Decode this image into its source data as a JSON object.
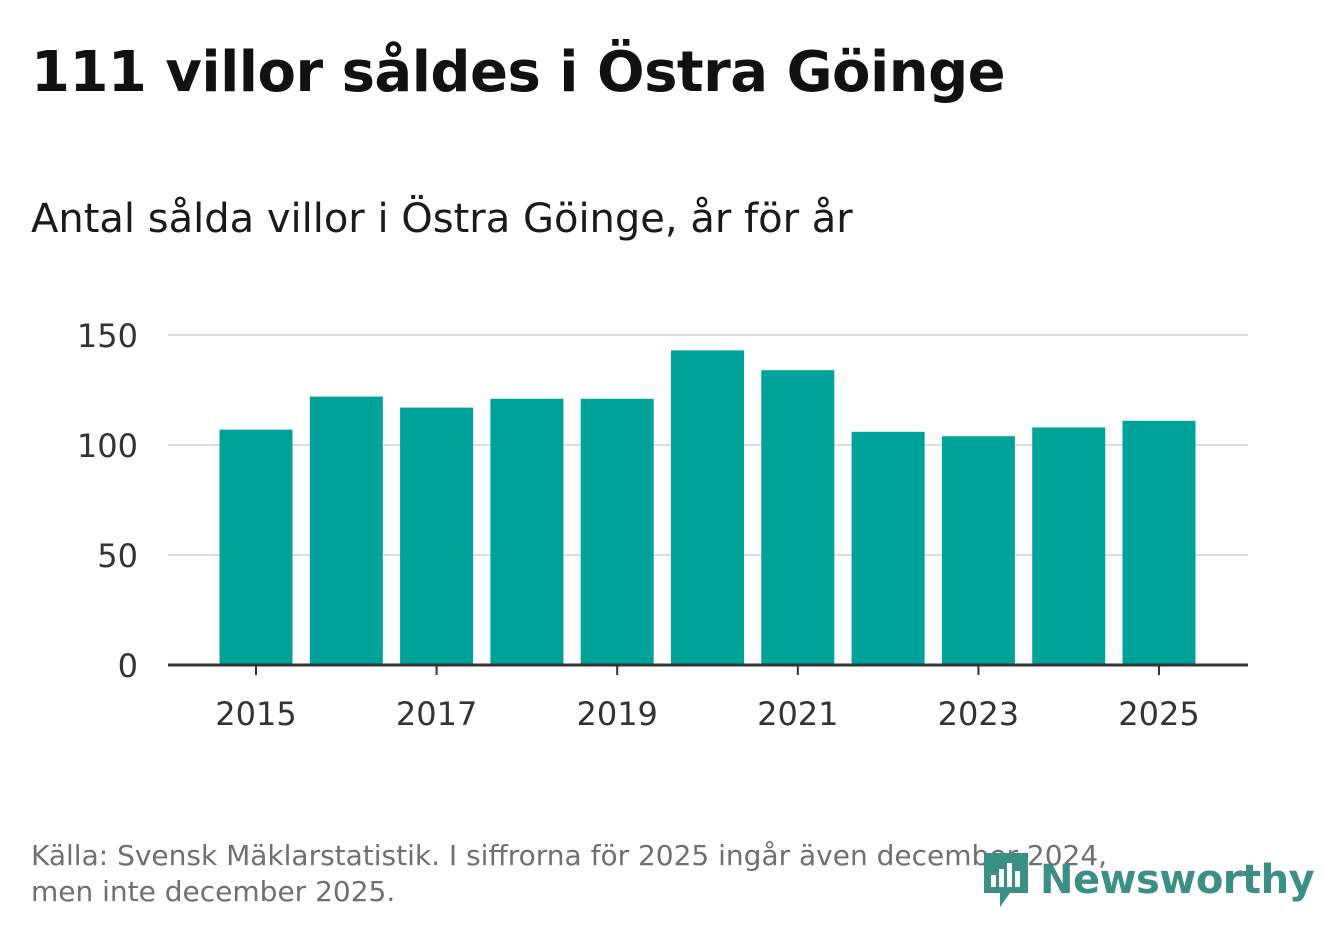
{
  "title": "111 villor såldes i Östra Göinge",
  "subtitle": "Antal sålda villor i Östra Göinge, år för år",
  "source_line1": "Källa: Svensk Mäklarstatistik. I siffrorna för 2025 ingår även december 2024,",
  "source_line2": "men inte december 2025.",
  "brand": {
    "name": "Newsworthy",
    "icon": "newsworthy-logo-icon",
    "color": "#3b8f84"
  },
  "colors": {
    "bar": "#00a39a",
    "grid": "#dddddd",
    "axis": "#333333",
    "tick_text": "#333333"
  },
  "chart_data": {
    "type": "bar",
    "title": "Antal sålda villor i Östra Göinge, år för år",
    "xlabel": "",
    "ylabel": "",
    "categories": [
      "2015",
      "2016",
      "2017",
      "2018",
      "2019",
      "2020",
      "2021",
      "2022",
      "2023",
      "2024",
      "2025"
    ],
    "values": [
      107,
      122,
      117,
      121,
      121,
      143,
      134,
      106,
      104,
      108,
      111
    ],
    "ylim": [
      0,
      150
    ],
    "yticks": [
      0,
      50,
      100,
      150
    ],
    "ytick_labels": [
      "0",
      "50",
      "100",
      "150"
    ],
    "xtick_labels": [
      "2015",
      "2017",
      "2019",
      "2021",
      "2023",
      "2025"
    ],
    "grid": true,
    "legend": "none"
  }
}
